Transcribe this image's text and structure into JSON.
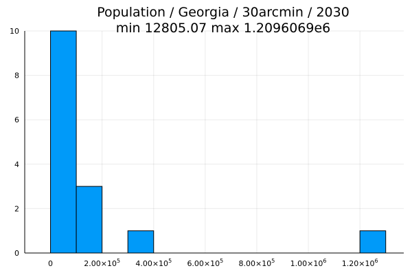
{
  "chart_data": {
    "type": "bar",
    "title": "Population / Georgia / 30arcmin / 2030",
    "subtitle": "min 12805.07  max 1.2096069e6",
    "xlabel": "",
    "ylabel": "",
    "bar_color": "#009af9",
    "grid": true,
    "xlim": [
      -100000,
      1370000
    ],
    "ylim": [
      0,
      10
    ],
    "bin_width": 100000,
    "bins": [
      {
        "x0": 0,
        "x1": 100000,
        "count": 10
      },
      {
        "x0": 100000,
        "x1": 200000,
        "count": 3
      },
      {
        "x0": 300000,
        "x1": 400000,
        "count": 1
      },
      {
        "x0": 1200000,
        "x1": 1300000,
        "count": 1
      }
    ],
    "x_ticks": [
      {
        "value": 0,
        "mantissa": "0",
        "exponent": ""
      },
      {
        "value": 200000,
        "mantissa": "2.00×10",
        "exponent": "5"
      },
      {
        "value": 400000,
        "mantissa": "4.00×10",
        "exponent": "5"
      },
      {
        "value": 600000,
        "mantissa": "6.00×10",
        "exponent": "5"
      },
      {
        "value": 800000,
        "mantissa": "8.00×10",
        "exponent": "5"
      },
      {
        "value": 1000000,
        "mantissa": "1.00×10",
        "exponent": "6"
      },
      {
        "value": 1200000,
        "mantissa": "1.20×10",
        "exponent": "6"
      }
    ],
    "y_ticks": [
      {
        "value": 0,
        "label": "0"
      },
      {
        "value": 2,
        "label": "2"
      },
      {
        "value": 4,
        "label": "4"
      },
      {
        "value": 6,
        "label": "6"
      },
      {
        "value": 8,
        "label": "8"
      },
      {
        "value": 10,
        "label": "10"
      }
    ]
  }
}
